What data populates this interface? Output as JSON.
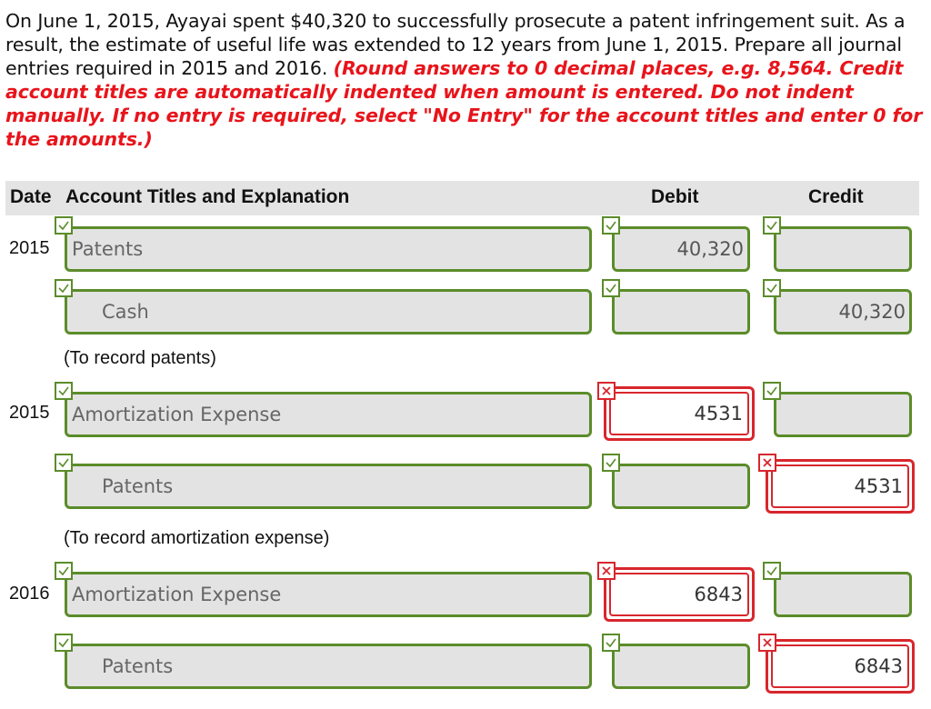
{
  "problem": {
    "text": "On June 1, 2015, Ayayai spent $40,320 to successfully prosecute a patent infringement suit. As a result, the estimate of useful life was extended to 12 years from June 1, 2015. Prepare all journal entries required in 2015 and 2016. ",
    "instructions": "(Round answers to 0 decimal places, e.g. 8,564. Credit account titles are automatically indented when amount is entered. Do not indent manually. If no entry is required, select \"No Entry\" for the account titles and enter 0 for the amounts.)"
  },
  "table": {
    "headers": {
      "date": "Date",
      "account": "Account Titles and Explanation",
      "debit": "Debit",
      "credit": "Credit"
    }
  },
  "entries": [
    {
      "rows": [
        {
          "date": "2015",
          "account": "Patents",
          "debit": "40,320",
          "credit": "",
          "account_status": "correct",
          "debit_status": "correct",
          "credit_status": "correct"
        },
        {
          "date": "",
          "account": "Cash",
          "debit": "",
          "credit": "40,320",
          "account_status": "correct",
          "debit_status": "correct",
          "credit_status": "correct"
        }
      ],
      "note": "(To record patents)"
    },
    {
      "rows": [
        {
          "date": "2015",
          "account": "Amortization Expense",
          "debit": "4531",
          "credit": "",
          "account_status": "correct",
          "debit_status": "incorrect",
          "credit_status": "correct"
        },
        {
          "date": "",
          "account": "Patents",
          "debit": "",
          "credit": "4531",
          "account_status": "correct",
          "debit_status": "correct",
          "credit_status": "incorrect"
        }
      ],
      "note": "(To record amortization expense)"
    },
    {
      "rows": [
        {
          "date": "2016",
          "account": "Amortization Expense",
          "debit": "6843",
          "credit": "",
          "account_status": "correct",
          "debit_status": "incorrect",
          "credit_status": "correct"
        },
        {
          "date": "",
          "account": "Patents",
          "debit": "",
          "credit": "6843",
          "account_status": "correct",
          "debit_status": "correct",
          "credit_status": "incorrect"
        }
      ]
    }
  ],
  "colors": {
    "correct": "#5b8c2a",
    "incorrect": "#d8262d",
    "instructions": "#e8141b",
    "field_bg": "#e3e3e3",
    "header_bg": "#e4e4e4"
  }
}
